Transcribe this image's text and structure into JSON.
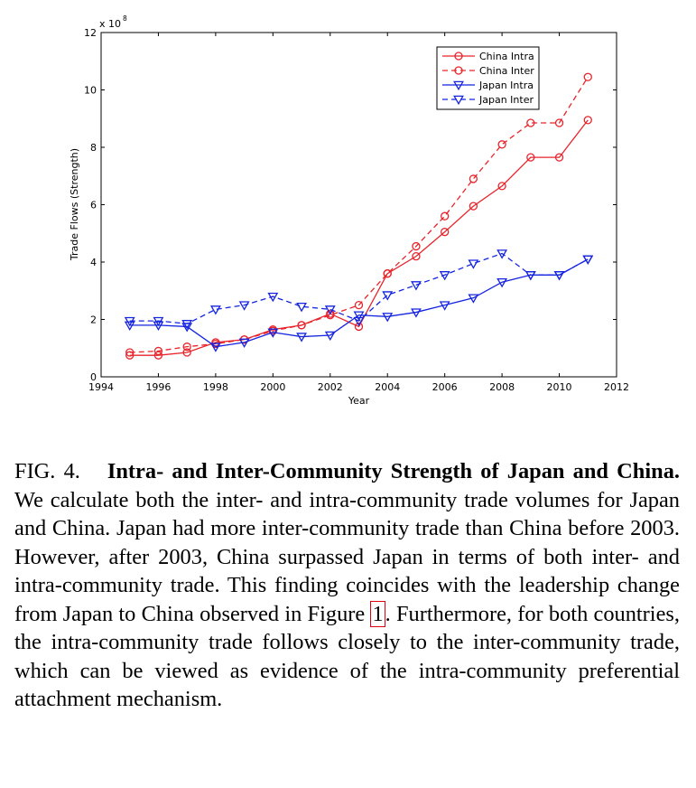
{
  "chart_data": {
    "type": "line",
    "title": "",
    "xlabel": "Year",
    "ylabel": "Trade Flows (Strength)",
    "y_scale_note": "x 10",
    "y_scale_exponent": "8",
    "xlim": [
      1994,
      2012
    ],
    "ylim": [
      0,
      12
    ],
    "xticks": [
      1994,
      1996,
      1998,
      2000,
      2002,
      2004,
      2006,
      2008,
      2010,
      2012
    ],
    "yticks": [
      0,
      2,
      4,
      6,
      8,
      10,
      12
    ],
    "grid": false,
    "legend_position": "top-right",
    "x": [
      1995,
      1996,
      1997,
      1998,
      1999,
      2000,
      2001,
      2002,
      2003,
      2004,
      2005,
      2006,
      2007,
      2008,
      2009,
      2010,
      2011
    ],
    "series": [
      {
        "name": "China Intra",
        "color": "#e8242b",
        "dash": "solid",
        "marker": "circle",
        "values": [
          0.75,
          0.75,
          0.85,
          1.2,
          1.3,
          1.65,
          1.8,
          2.2,
          1.75,
          3.6,
          4.2,
          5.05,
          5.95,
          6.65,
          7.65,
          7.65,
          8.95
        ]
      },
      {
        "name": "China Inter",
        "color": "#e8242b",
        "dash": "dashed",
        "marker": "circle",
        "values": [
          0.85,
          0.9,
          1.05,
          1.15,
          1.3,
          1.6,
          1.8,
          2.15,
          2.5,
          3.6,
          4.55,
          5.6,
          6.9,
          8.1,
          8.85,
          8.85,
          10.45
        ]
      },
      {
        "name": "Japan Intra",
        "color": "#1524e0",
        "dash": "solid",
        "marker": "triangle-down",
        "values": [
          1.8,
          1.8,
          1.75,
          1.05,
          1.2,
          1.55,
          1.4,
          1.45,
          2.15,
          2.1,
          2.25,
          2.5,
          2.75,
          3.3,
          3.55,
          3.55,
          4.1
        ]
      },
      {
        "name": "Japan Inter",
        "color": "#1524e0",
        "dash": "dashed",
        "marker": "triangle-down",
        "values": [
          1.95,
          1.95,
          1.85,
          2.35,
          2.5,
          2.8,
          2.45,
          2.35,
          1.95,
          2.85,
          3.2,
          3.55,
          3.95,
          4.3,
          3.55,
          3.55,
          4.1
        ]
      }
    ]
  },
  "caption": {
    "label": "FIG. 4.",
    "title": "Intra- and Inter-Community Strength of Japan and China.",
    "body_before_ref": "We calculate both the inter- and intra-community trade volumes for Japan and China. Japan had more inter-community trade than China before 2003. However, after 2003, China surpassed Japan in terms of both inter- and intra-community trade. This finding coincides with the leadership change from Japan to China observed in Figure",
    "ref": "1",
    "body_after_ref": ". Furthermore, for both countries, the intra-community trade follows closely to the inter-community trade, which can be viewed as evidence of the intra-community preferential attachment mechanism."
  }
}
